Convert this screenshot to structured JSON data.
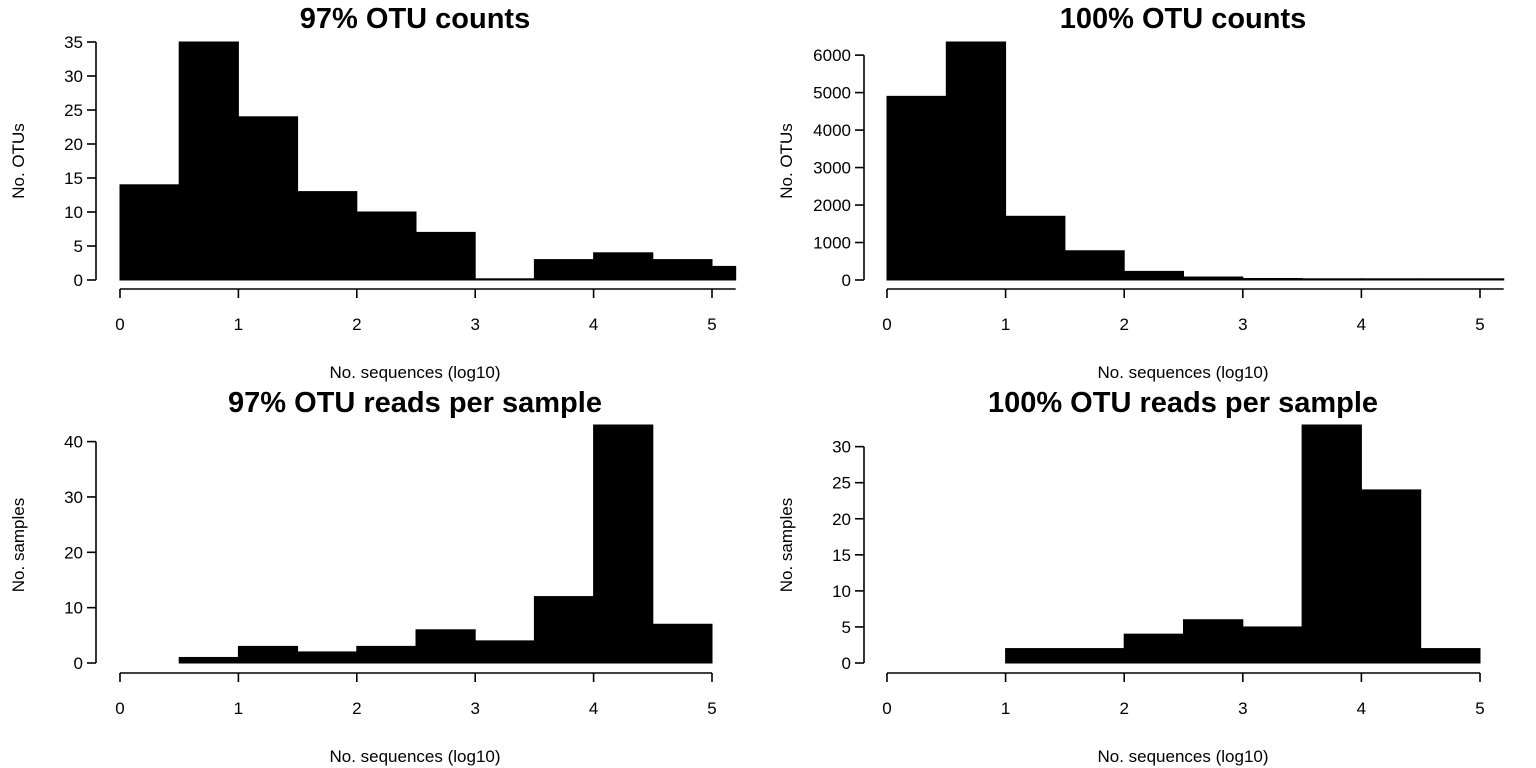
{
  "chart_data": [
    {
      "type": "bar",
      "title": "97% OTU counts",
      "xlabel": "No. sequences (log10)",
      "ylabel": "No. OTUs",
      "bin_edges": [
        0,
        0.5,
        1,
        1.5,
        2,
        2.5,
        3,
        3.5,
        4,
        4.5,
        5,
        5.2
      ],
      "values": [
        14,
        35,
        24,
        13,
        10,
        7,
        0,
        3,
        4,
        3,
        2
      ],
      "xlim": [
        0,
        5.2
      ],
      "ylim": [
        0,
        35
      ],
      "xticks": [
        "0",
        "1",
        "2",
        "3",
        "4",
        "5"
      ],
      "yticks": [
        "0",
        "5",
        "10",
        "15",
        "20",
        "25",
        "30",
        "35"
      ],
      "grid": false
    },
    {
      "type": "bar",
      "title": "100% OTU counts",
      "xlabel": "No. sequences (log10)",
      "ylabel": "No. OTUs",
      "bin_edges": [
        0,
        0.5,
        1,
        1.5,
        2,
        2.5,
        3,
        3.5,
        4,
        4.5,
        5,
        5.2
      ],
      "values": [
        4900,
        6350,
        1700,
        780,
        230,
        80,
        40,
        20,
        10,
        5,
        3
      ],
      "xlim": [
        0,
        5.2
      ],
      "ylim": [
        0,
        6350
      ],
      "xticks": [
        "0",
        "1",
        "2",
        "3",
        "4",
        "5"
      ],
      "yticks": [
        "0",
        "1000",
        "2000",
        "3000",
        "4000",
        "5000",
        "6000"
      ],
      "grid": false
    },
    {
      "type": "bar",
      "title": "97% OTU reads per sample",
      "xlabel": "No. sequences (log10)",
      "ylabel": "No. samples",
      "bin_edges": [
        0.5,
        1,
        1.5,
        2,
        2.5,
        3,
        3.5,
        4,
        4.5,
        5
      ],
      "values": [
        1,
        3,
        2,
        3,
        6,
        4,
        12,
        43,
        7
      ],
      "xlim": [
        0,
        5
      ],
      "ylim": [
        0,
        43
      ],
      "xticks": [
        "0",
        "1",
        "2",
        "3",
        "4",
        "5"
      ],
      "yticks": [
        "0",
        "10",
        "20",
        "30",
        "40"
      ],
      "grid": false
    },
    {
      "type": "bar",
      "title": "100% OTU reads per sample",
      "xlabel": "No. sequences (log10)",
      "ylabel": "No. samples",
      "bin_edges": [
        1,
        1.5,
        2,
        2.5,
        3,
        3.5,
        4,
        4.5,
        5
      ],
      "values": [
        2,
        2,
        4,
        6,
        5,
        33,
        24,
        2
      ],
      "xlim": [
        0,
        5
      ],
      "ylim": [
        0,
        33
      ],
      "xticks": [
        "0",
        "1",
        "2",
        "3",
        "4",
        "5"
      ],
      "yticks": [
        "0",
        "5",
        "10",
        "15",
        "20",
        "25",
        "30"
      ],
      "grid": false
    }
  ]
}
